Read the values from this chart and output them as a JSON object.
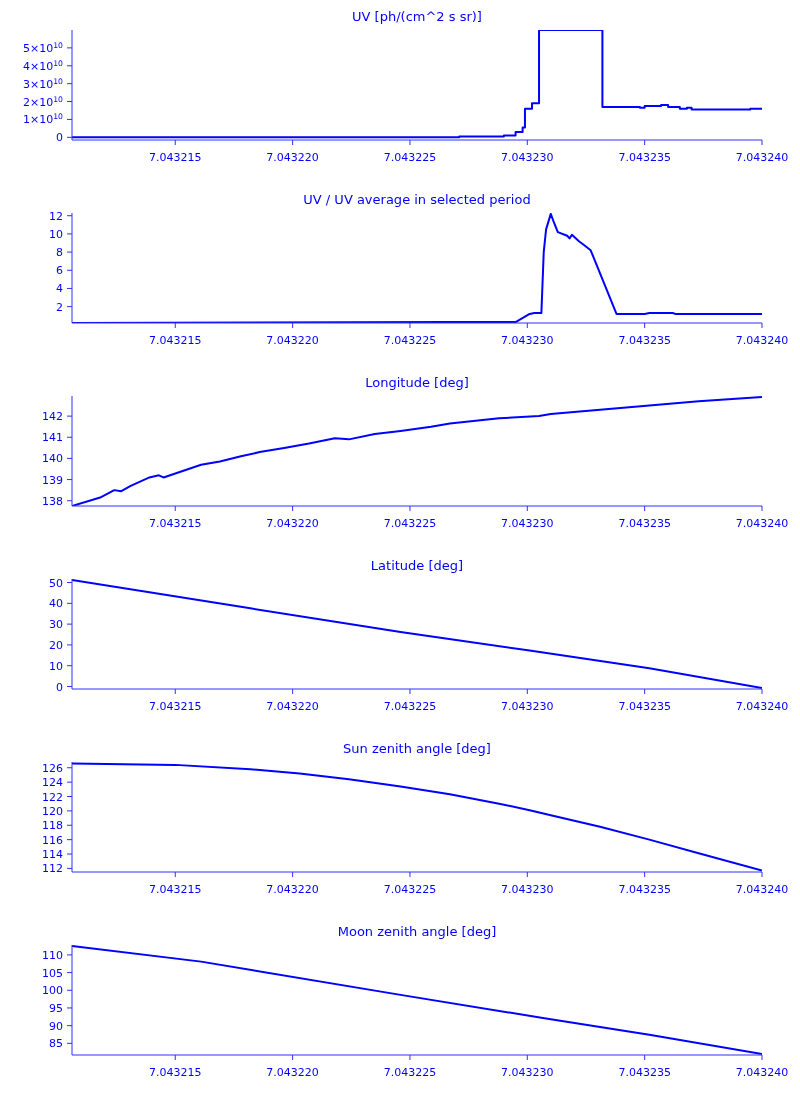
{
  "chart_data": [
    {
      "type": "step",
      "title": "UV [ph/(cm^2 s sr)]",
      "xlim": [
        7.0432106,
        7.04324
      ],
      "xticks": [
        7.043215,
        {
          "value": 7.04322,
          "label": "7.043220"
        },
        7.043225,
        {
          "value": 7.04323,
          "label": "7.043230"
        },
        7.043235,
        {
          "value": 7.04324,
          "label": "7.043240"
        }
      ],
      "ylim": [
        -1500000000,
        60000000000
      ],
      "yticks": [
        0,
        {
          "value": 10000000000,
          "label": "1×10$^{10}$"
        },
        {
          "value": 20000000000,
          "label": "2×10$^{10}$"
        },
        {
          "value": 30000000000,
          "label": "3×10$^{10}$"
        },
        {
          "value": 40000000000,
          "label": "4×10$^{10}$"
        },
        {
          "value": 50000000000,
          "label": "5×10$^{10}$"
        }
      ],
      "x": [
        7.0432106,
        7.0432271,
        7.043229,
        7.0432295,
        7.0432298,
        7.0432299,
        7.0432302,
        7.0432305,
        7.0432332,
        7.0432348,
        7.043235,
        7.0432357,
        7.043236,
        7.0432365,
        7.0432368,
        7.043237,
        7.0432395,
        7.04324
      ],
      "series": [
        {
          "color": "#0000ff",
          "values": [
            0,
            500000000,
            1000000000,
            3000000000,
            5500000000,
            16000000000,
            19000000000,
            60000000000,
            17000000000,
            16500000000,
            17500000000,
            18000000000,
            17000000000,
            16000000000,
            16500000000,
            15500000000,
            16000000000,
            16000000000
          ]
        }
      ]
    },
    {
      "type": "line",
      "title": "UV / UV average in selected period",
      "xlim": [
        7.0432106,
        7.04324
      ],
      "xticks": [
        7.043215,
        {
          "value": 7.04322,
          "label": "7.043220"
        },
        7.043225,
        {
          "value": 7.04323,
          "label": "7.043230"
        },
        7.043235,
        {
          "value": 7.04324,
          "label": "7.043240"
        }
      ],
      "ylim": [
        0.2,
        12.3
      ],
      "yticks": [
        2,
        4,
        6,
        8,
        10,
        12
      ],
      "x": [
        7.0432106,
        7.0432265,
        7.0432295,
        7.0432301,
        7.0432303,
        7.0432306,
        7.0432307,
        7.0432308,
        7.043231,
        7.0432311,
        7.0432313,
        7.0432317,
        7.0432318,
        7.0432319,
        7.0432322,
        7.0432324,
        7.0432327,
        7.0432338,
        7.043235,
        7.0432352,
        7.0432362,
        7.0432363,
        7.04324
      ],
      "series": [
        {
          "color": "#0000ff",
          "values": [
            0.2,
            0.3,
            0.3,
            1.2,
            1.3,
            1.3,
            8,
            10.5,
            12.2,
            11.5,
            10.2,
            9.8,
            9.5,
            9.9,
            9.2,
            8.8,
            8.2,
            1.2,
            1.2,
            1.3,
            1.3,
            1.2,
            1.2
          ]
        }
      ]
    },
    {
      "type": "line",
      "title": "Longitude [deg]",
      "xlim": [
        7.0432106,
        7.04324
      ],
      "xticks": [
        7.043215,
        {
          "value": 7.04322,
          "label": "7.043220"
        },
        7.043225,
        {
          "value": 7.04323,
          "label": "7.043230"
        },
        7.043235,
        {
          "value": 7.04324,
          "label": "7.043240"
        }
      ],
      "ylim": [
        137.75,
        142.95
      ],
      "yticks": [
        138,
        139,
        140,
        141,
        142
      ],
      "x": [
        7.0432106,
        7.0432118,
        7.0432124,
        7.0432127,
        7.0432131,
        7.0432139,
        7.0432143,
        7.0432145,
        7.0432161,
        7.0432169,
        7.0432178,
        7.0432186,
        7.0432197,
        7.0432207,
        7.0432218,
        7.0432224,
        7.0432235,
        7.0432246,
        7.0432259,
        7.0432267,
        7.0432288,
        7.0432305,
        7.043231,
        7.0432331,
        7.0432352,
        7.0432373,
        7.04324
      ],
      "series": [
        {
          "color": "#0000ff",
          "values": [
            137.75,
            138.15,
            138.5,
            138.45,
            138.7,
            139.1,
            139.2,
            139.1,
            139.7,
            139.85,
            140.1,
            140.3,
            140.5,
            140.7,
            140.95,
            140.9,
            141.15,
            141.3,
            141.5,
            141.65,
            141.9,
            142,
            142.1,
            142.3,
            142.5,
            142.7,
            142.9
          ]
        }
      ]
    },
    {
      "type": "line",
      "title": "Latitude [deg]",
      "xlim": [
        7.0432106,
        7.04324
      ],
      "xticks": [
        7.043215,
        {
          "value": 7.04322,
          "label": "7.043220"
        },
        7.043225,
        {
          "value": 7.04323,
          "label": "7.043230"
        },
        7.043235,
        {
          "value": 7.04324,
          "label": "7.043240"
        }
      ],
      "ylim": [
        -1.2,
        51.7
      ],
      "yticks": [
        0,
        10,
        20,
        30,
        40,
        50
      ],
      "x": [
        7.0432106,
        7.0432182,
        7.0432246,
        7.0432301,
        7.0432352,
        7.04324
      ],
      "series": [
        {
          "color": "#0000ff",
          "values": [
            51.2,
            37.6,
            26.2,
            17.3,
            8.8,
            -0.7
          ]
        }
      ]
    },
    {
      "type": "line",
      "title": "Sun zenith angle [deg]",
      "xlim": [
        7.0432106,
        7.04324
      ],
      "xticks": [
        7.043215,
        {
          "value": 7.04322,
          "label": "7.043220"
        },
        7.043225,
        {
          "value": 7.04323,
          "label": "7.043230"
        },
        7.043235,
        {
          "value": 7.04324,
          "label": "7.043240"
        }
      ],
      "ylim": [
        111.5,
        126.8
      ],
      "yticks": [
        112,
        114,
        116,
        118,
        120,
        122,
        124,
        126
      ],
      "x": [
        7.0432106,
        7.043215,
        7.0432182,
        7.0432203,
        7.0432224,
        7.0432246,
        7.0432267,
        7.0432288,
        7.0432301,
        7.043231,
        7.0432331,
        7.0432352,
        7.0432373,
        7.04324
      ],
      "series": [
        {
          "color": "#0000ff",
          "values": [
            126.6,
            126.4,
            125.8,
            125.2,
            124.4,
            123.4,
            122.3,
            121,
            120.1,
            119.4,
            117.8,
            116,
            114.1,
            111.7
          ]
        }
      ]
    },
    {
      "type": "line",
      "title": "Moon zenith angle [deg]",
      "xlim": [
        7.0432106,
        7.04324
      ],
      "xticks": [
        7.043215,
        {
          "value": 7.04322,
          "label": "7.043220"
        },
        7.043225,
        {
          "value": 7.04323,
          "label": "7.043230"
        },
        7.043235,
        {
          "value": 7.04324,
          "label": "7.043240"
        }
      ],
      "ylim": [
        81.7,
        112.8
      ],
      "yticks": [
        85,
        90,
        95,
        100,
        105,
        110
      ],
      "x": [
        7.0432106,
        7.0432161,
        7.0432246,
        7.043231,
        7.0432352,
        7.04324
      ],
      "series": [
        {
          "color": "#0000ff",
          "values": [
            112.5,
            108.1,
            98.7,
            91.8,
            87.4,
            82
          ]
        }
      ]
    }
  ]
}
